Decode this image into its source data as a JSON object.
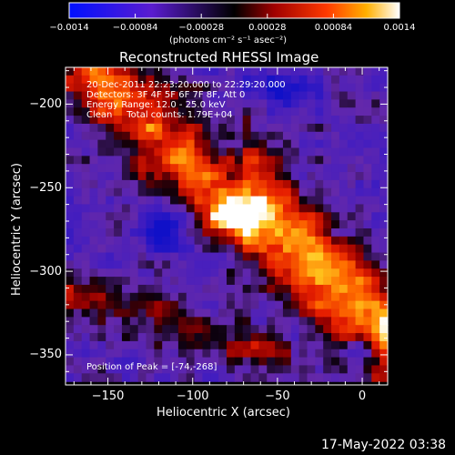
{
  "chart_data": {
    "type": "heatmap",
    "title": "Reconstructed RHESSI Image",
    "xlabel": "Heliocentric X (arcsec)",
    "ylabel": "Heliocentric Y (arcsec)",
    "xlim": [
      -175,
      15
    ],
    "ylim": [
      -368,
      -178
    ],
    "x_ticks": [
      -150,
      -100,
      -50,
      0
    ],
    "y_ticks": [
      -200,
      -250,
      -300,
      -350
    ],
    "colorbar": {
      "min": -0.0014,
      "max": 0.0014,
      "tick_labels": [
        "-0.0014",
        "-0.00084",
        "-0.00028",
        "0.00028",
        "0.00084",
        "0.0014"
      ],
      "units_label": "(photons cm⁻² s⁻¹ asec⁻²)"
    },
    "annotations": {
      "time_range": "20-Dec-2011 22:23:20.000 to 22:29:20.000",
      "detectors": "Detectors: 3F 4F 5F 6F 7F 8F, Att 0",
      "energy": "Energy Range: 12.0 - 25.0 keV",
      "method": "Clean     Total counts: 1.79E+04",
      "peak": "Position of Peak = [-74,-268]"
    },
    "peak_position": [
      -74,
      -268
    ],
    "footer_date": "17-May-2022 03:38"
  },
  "colors": {
    "negative": "#1010e0",
    "mid_negative": "#7a2fc8",
    "zero": "#000000",
    "positive_low": "#c00000",
    "positive_mid": "#ff6a00",
    "positive_high": "#ffffff"
  }
}
